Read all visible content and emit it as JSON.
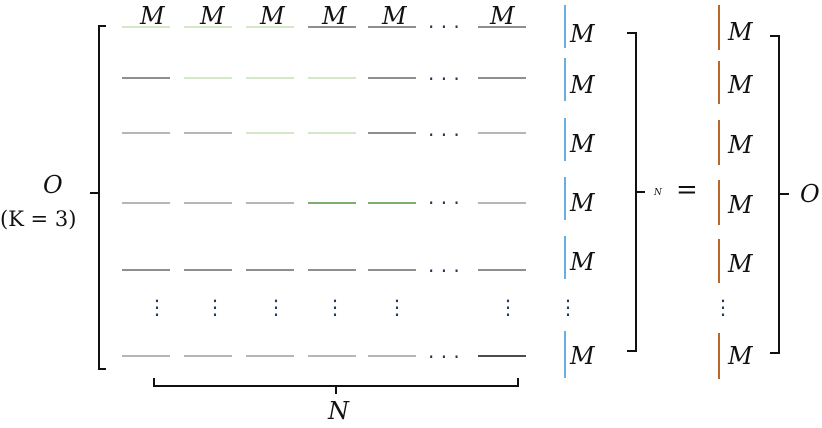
{
  "symbols": {
    "m": "M",
    "n": "N",
    "o": "O",
    "k_label": "(K = 3)",
    "subscript_n": "N",
    "equals": "=",
    "hdots": "· · ·",
    "vdots": "⋮"
  },
  "colors": {
    "dark_gray": "#4a4a4a",
    "mid_gray": "#8a8a8a",
    "light_green": "#b9d9a6",
    "green": "#2f7d1f",
    "blue_bar": "#6aaee0",
    "orange_bar": "#b8662a",
    "ink": "#111111"
  }
}
